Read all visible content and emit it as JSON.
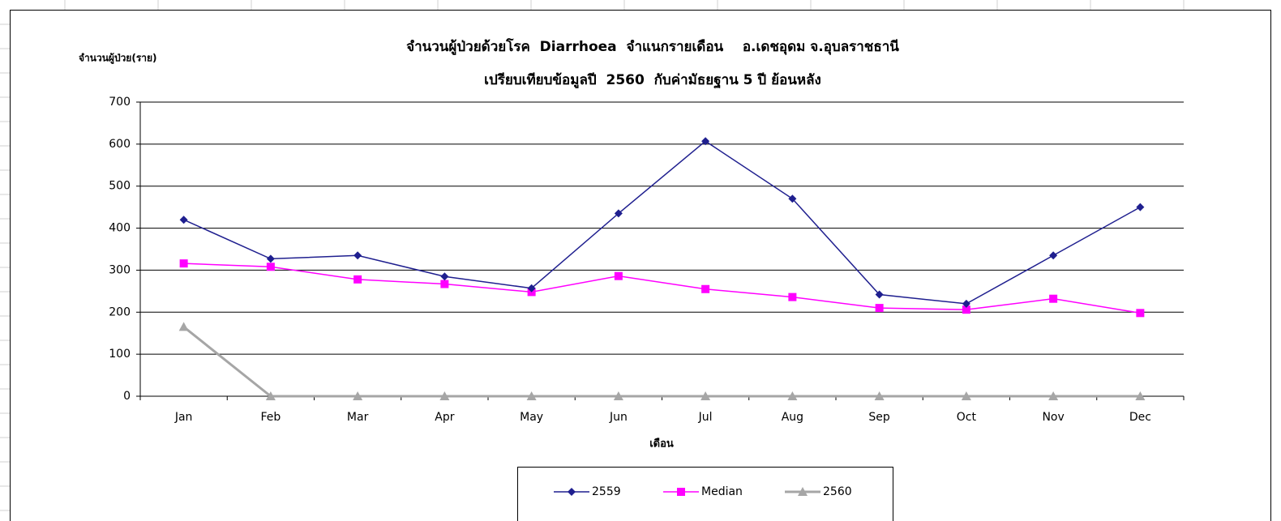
{
  "chart_data": {
    "type": "line",
    "title": "จำนวนผู้ป่วยด้วยโรค  Diarrhoea  จำแนกรายเดือน    อ.เดชอุดม จ.อุบลราชธานี",
    "subtitle": "เปรียบเทียบข้อมูลปี  2560  กับค่ามัธยฐาน 5 ปี ย้อนหลัง",
    "y_label": "จำนวนผู้ป่วย(ราย)",
    "x_label": "เดือน",
    "categories": [
      "Jan",
      "Feb",
      "Mar",
      "Apr",
      "May",
      "Jun",
      "Jul",
      "Aug",
      "Sep",
      "Oct",
      "Nov",
      "Dec"
    ],
    "series": [
      {
        "name": "2559",
        "color": "#1f1f8f",
        "marker": "diamond",
        "values": [
          420,
          327,
          335,
          285,
          257,
          435,
          607,
          470,
          242,
          220,
          335,
          450
        ]
      },
      {
        "name": "Median",
        "color": "#ff00ff",
        "marker": "square",
        "values": [
          316,
          308,
          278,
          267,
          248,
          286,
          255,
          236,
          210,
          206,
          232,
          198
        ]
      },
      {
        "name": "2560",
        "color": "#a6a6a6",
        "marker": "triangle",
        "values": [
          165,
          0,
          0,
          0,
          0,
          0,
          0,
          0,
          0,
          0,
          0,
          0
        ]
      }
    ],
    "ylim": [
      0,
      700
    ],
    "yticks": [
      0,
      100,
      200,
      300,
      400,
      500,
      600,
      700
    ],
    "grid": true,
    "legend": "bottom"
  }
}
